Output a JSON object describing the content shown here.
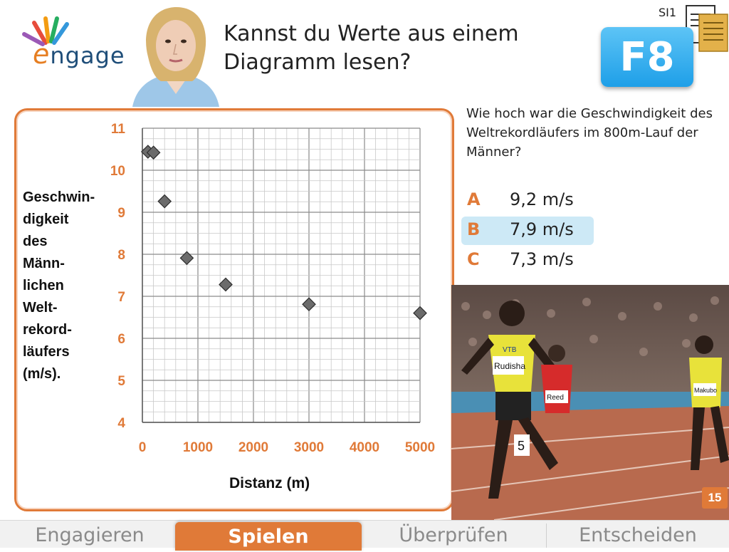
{
  "header": {
    "logo_text": "ngage",
    "logo_initial": "e",
    "title_line1": "Kannst du Werte aus einem",
    "title_line2": "Diagramm lesen?",
    "badge": "F8",
    "level": "SI1"
  },
  "chart_data": {
    "type": "scatter",
    "ylabel_lines": [
      "Geschwin-",
      "digkeit",
      "des",
      "Männ-",
      "lichen",
      "Welt-",
      "rekord-",
      "läufers",
      "(m/s)."
    ],
    "xlabel": "Distanz (m)",
    "xlim": [
      0,
      5000
    ],
    "ylim": [
      4,
      11
    ],
    "x_ticks": [
      "0",
      "1000",
      "2000",
      "3000",
      "4000",
      "5000"
    ],
    "y_ticks": [
      "4",
      "5",
      "6",
      "7",
      "8",
      "9",
      "10",
      "11"
    ],
    "grid": true,
    "points": [
      {
        "x": 100,
        "y": 10.44
      },
      {
        "x": 200,
        "y": 10.42
      },
      {
        "x": 400,
        "y": 9.26
      },
      {
        "x": 800,
        "y": 7.91
      },
      {
        "x": 1500,
        "y": 7.28
      },
      {
        "x": 3000,
        "y": 6.81
      },
      {
        "x": 5000,
        "y": 6.6
      }
    ],
    "marker_color": "#6b6b6b"
  },
  "question": {
    "text": "Wie hoch war die Geschwindigkeit des Weltrekordläufers im 800m-Lauf der Männer?",
    "answers": [
      {
        "letter": "A",
        "value": "9,2 m/s"
      },
      {
        "letter": "B",
        "value": "7,9 m/s"
      },
      {
        "letter": "C",
        "value": "7,3 m/s"
      }
    ],
    "selected": "B"
  },
  "photo": {
    "runner_bib_1": "Rudisha",
    "runner_bib_2": "Reed",
    "runner_bib_3": "Makubo",
    "sponsor": "VTB",
    "lane_number": "5"
  },
  "page_number": "15",
  "tabs": {
    "items": [
      "Engagieren",
      "Spielen",
      "Überprüfen",
      "Entscheiden"
    ],
    "active": "Spielen"
  },
  "colors": {
    "accent": "#e07a38",
    "badge": "#1e9fe8",
    "selected_answer": "#cde9f6"
  }
}
